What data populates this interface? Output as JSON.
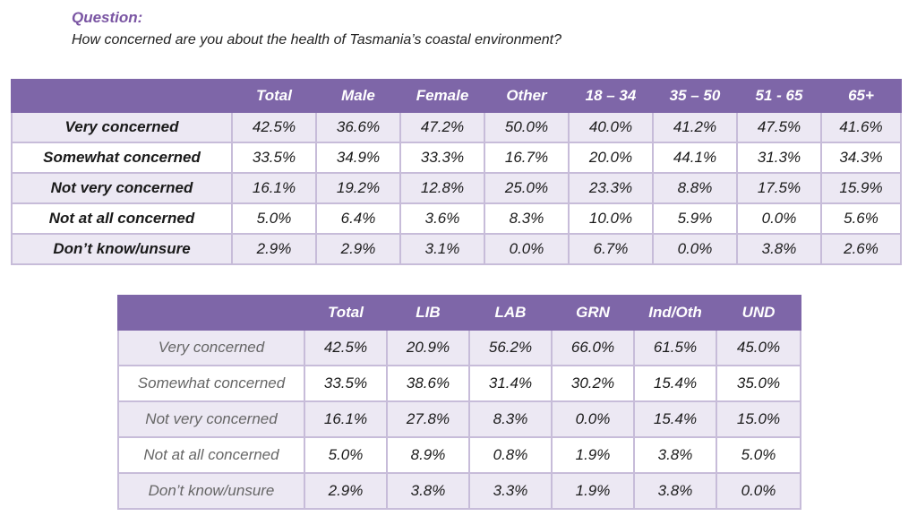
{
  "question": {
    "label": "Question:",
    "text": "How concerned are you about the health of Tasmania’s coastal environment?"
  },
  "demographics_table": {
    "headers": [
      "",
      "Total",
      "Male",
      "Female",
      "Other",
      "18 – 34",
      "35 – 50",
      "51 - 65",
      "65+"
    ],
    "rows": [
      [
        "Very concerned",
        "42.5%",
        "36.6%",
        "47.2%",
        "50.0%",
        "40.0%",
        "41.2%",
        "47.5%",
        "41.6%"
      ],
      [
        "Somewhat concerned",
        "33.5%",
        "34.9%",
        "33.3%",
        "16.7%",
        "20.0%",
        "44.1%",
        "31.3%",
        "34.3%"
      ],
      [
        "Not very concerned",
        "16.1%",
        "19.2%",
        "12.8%",
        "25.0%",
        "23.3%",
        "8.8%",
        "17.5%",
        "15.9%"
      ],
      [
        "Not at all concerned",
        "5.0%",
        "6.4%",
        "3.6%",
        "8.3%",
        "10.0%",
        "5.9%",
        "0.0%",
        "5.6%"
      ],
      [
        "Don’t know/unsure",
        "2.9%",
        "2.9%",
        "3.1%",
        "0.0%",
        "6.7%",
        "0.0%",
        "3.8%",
        "2.6%"
      ]
    ]
  },
  "party_table": {
    "headers": [
      "",
      "Total",
      "LIB",
      "LAB",
      "GRN",
      "Ind/Oth",
      "UND"
    ],
    "rows": [
      [
        "Very concerned",
        "42.5%",
        "20.9%",
        "56.2%",
        "66.0%",
        "61.5%",
        "45.0%"
      ],
      [
        "Somewhat concerned",
        "33.5%",
        "38.6%",
        "31.4%",
        "30.2%",
        "15.4%",
        "35.0%"
      ],
      [
        "Not very concerned",
        "16.1%",
        "27.8%",
        "8.3%",
        "0.0%",
        "15.4%",
        "15.0%"
      ],
      [
        "Not at all concerned",
        "5.0%",
        "8.9%",
        "0.8%",
        "1.9%",
        "3.8%",
        "5.0%"
      ],
      [
        "Don’t know/unsure",
        "2.9%",
        "3.8%",
        "3.3%",
        "1.9%",
        "3.8%",
        "0.0%"
      ]
    ]
  },
  "colors": {
    "header_background": "#7e66a8",
    "header_text": "#ffffff",
    "accent_question_label": "#7a55a3",
    "row_stripe": "#ece8f3",
    "border": "#c7bcd9"
  }
}
